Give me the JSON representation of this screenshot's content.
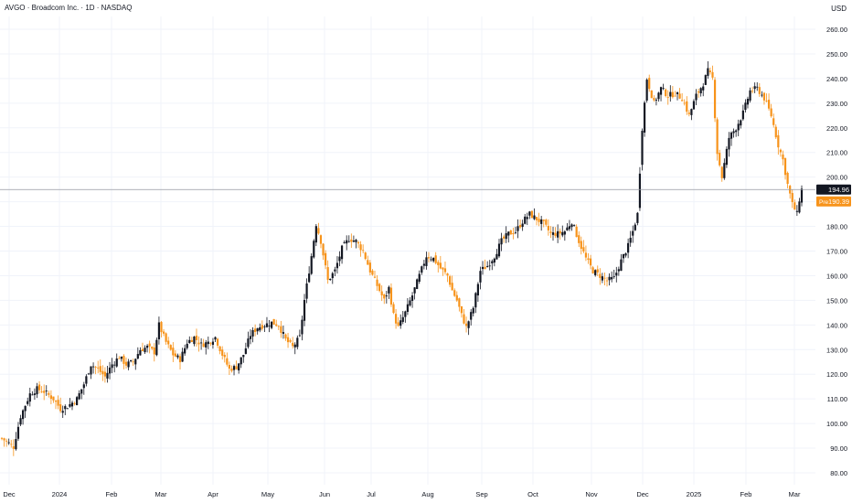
{
  "header": {
    "title": "AVGO · Broadcom Inc. · 1D · NASDAQ",
    "currency": "USD"
  },
  "colors": {
    "up": "#131722",
    "down": "#f7931a",
    "grid": "#f0f3fa",
    "axis_text": "#131722",
    "last_price_bg": "#131722",
    "pre_bg": "#f7931a",
    "price_line": "#9598a1"
  },
  "last_price": {
    "value": "194.96",
    "numeric": 194.96
  },
  "pre_market": {
    "tag": "Pre",
    "value": "190.39",
    "numeric": 190.39
  },
  "chart_data": {
    "type": "candlestick",
    "title": "AVGO · Broadcom Inc. · 1D · NASDAQ",
    "ylim": [
      75,
      265
    ],
    "y_ticks": [
      "80.00",
      "90.00",
      "100.00",
      "110.00",
      "120.00",
      "130.00",
      "140.00",
      "150.00",
      "160.00",
      "170.00",
      "180.00",
      "190.00",
      "200.00",
      "210.00",
      "220.00",
      "230.00",
      "240.00",
      "250.00",
      "260.00"
    ],
    "x_ticks": [
      "Dec",
      "2024",
      "Feb",
      "Mar",
      "Apr",
      "May",
      "Jun",
      "Jul",
      "Aug",
      "Sep",
      "Oct",
      "Nov",
      "Dec",
      "2025",
      "Feb",
      "Mar"
    ],
    "grid": true,
    "anchors": [
      [
        0,
        94
      ],
      [
        3,
        92
      ],
      [
        5,
        90.5
      ],
      [
        8,
        103
      ],
      [
        12,
        112
      ],
      [
        15,
        114
      ],
      [
        18,
        113
      ],
      [
        22,
        110
      ],
      [
        25,
        106
      ],
      [
        28,
        107
      ],
      [
        32,
        110
      ],
      [
        35,
        116
      ],
      [
        38,
        124
      ],
      [
        41,
        122
      ],
      [
        44,
        119
      ],
      [
        47,
        124
      ],
      [
        50,
        127
      ],
      [
        53,
        124
      ],
      [
        56,
        125
      ],
      [
        59,
        130
      ],
      [
        62,
        131
      ],
      [
        65,
        129
      ],
      [
        67,
        140
      ],
      [
        70,
        133
      ],
      [
        73,
        128
      ],
      [
        76,
        126
      ],
      [
        79,
        133
      ],
      [
        82,
        135
      ],
      [
        85,
        132
      ],
      [
        88,
        133
      ],
      [
        91,
        135
      ],
      [
        94,
        128
      ],
      [
        97,
        122
      ],
      [
        100,
        123
      ],
      [
        103,
        128
      ],
      [
        106,
        136
      ],
      [
        109,
        139
      ],
      [
        112,
        140
      ],
      [
        115,
        141
      ],
      [
        118,
        140
      ],
      [
        121,
        134
      ],
      [
        124,
        131
      ],
      [
        127,
        135
      ],
      [
        129,
        150
      ],
      [
        132,
        168
      ],
      [
        134,
        181
      ],
      [
        136,
        174
      ],
      [
        139,
        158
      ],
      [
        142,
        162
      ],
      [
        145,
        171
      ],
      [
        148,
        175
      ],
      [
        151,
        174
      ],
      [
        154,
        170
      ],
      [
        157,
        162
      ],
      [
        160,
        156
      ],
      [
        163,
        150
      ],
      [
        165,
        155
      ],
      [
        167,
        144
      ],
      [
        169,
        139
      ],
      [
        172,
        145
      ],
      [
        175,
        152
      ],
      [
        178,
        160
      ],
      [
        181,
        168
      ],
      [
        184,
        167
      ],
      [
        187,
        163
      ],
      [
        190,
        160
      ],
      [
        192,
        154
      ],
      [
        194,
        150
      ],
      [
        196,
        144
      ],
      [
        198,
        139
      ],
      [
        201,
        147
      ],
      [
        204,
        162
      ],
      [
        207,
        164
      ],
      [
        210,
        168
      ],
      [
        213,
        174
      ],
      [
        216,
        177
      ],
      [
        219,
        178
      ],
      [
        222,
        182
      ],
      [
        225,
        185
      ],
      [
        228,
        183
      ],
      [
        231,
        181
      ],
      [
        234,
        177
      ],
      [
        237,
        177
      ],
      [
        240,
        178
      ],
      [
        243,
        182
      ],
      [
        246,
        174
      ],
      [
        249,
        167
      ],
      [
        252,
        162
      ],
      [
        255,
        160
      ],
      [
        258,
        158
      ],
      [
        261,
        159
      ],
      [
        264,
        166
      ],
      [
        267,
        172
      ],
      [
        269,
        178
      ],
      [
        271,
        185
      ],
      [
        273,
        220
      ],
      [
        275,
        240
      ],
      [
        278,
        230
      ],
      [
        281,
        236
      ],
      [
        284,
        233
      ],
      [
        287,
        234
      ],
      [
        290,
        232
      ],
      [
        293,
        225
      ],
      [
        296,
        233
      ],
      [
        299,
        238
      ],
      [
        301,
        243
      ],
      [
        303,
        240
      ],
      [
        305,
        210
      ],
      [
        307,
        200
      ],
      [
        310,
        216
      ],
      [
        313,
        220
      ],
      [
        316,
        226
      ],
      [
        319,
        235
      ],
      [
        322,
        236
      ],
      [
        325,
        232
      ],
      [
        328,
        225
      ],
      [
        331,
        213
      ],
      [
        333,
        207
      ],
      [
        335,
        197
      ],
      [
        337,
        189
      ],
      [
        339,
        185
      ],
      [
        340,
        191
      ],
      [
        341,
        194.96
      ]
    ]
  }
}
